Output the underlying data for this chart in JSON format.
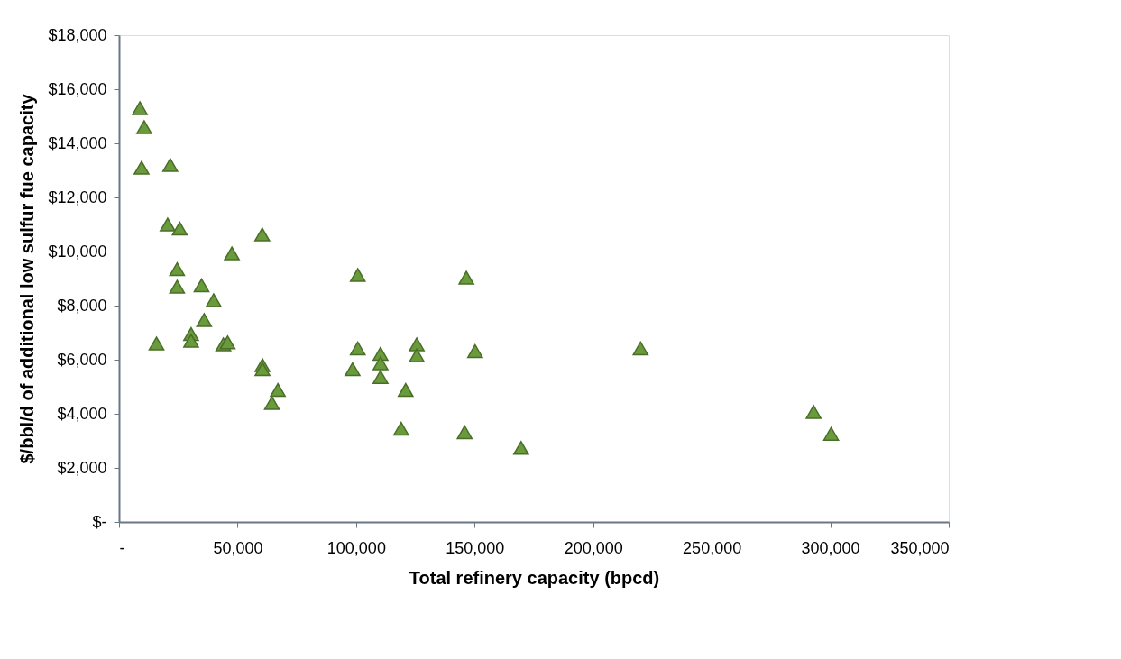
{
  "chart_data": {
    "type": "scatter",
    "xlabel": "Total refinery capacity (bpcd)",
    "ylabel": "$/bbl/d of additional low sulfur fue capacity",
    "marker": "triangle",
    "grid": false,
    "xlim": [
      0,
      350000
    ],
    "ylim": [
      0,
      18000
    ],
    "xticks": [
      {
        "value": 0,
        "label": "-"
      },
      {
        "value": 50000,
        "label": "50,000"
      },
      {
        "value": 100000,
        "label": "100,000"
      },
      {
        "value": 150000,
        "label": "150,000"
      },
      {
        "value": 200000,
        "label": "200,000"
      },
      {
        "value": 250000,
        "label": "250,000"
      },
      {
        "value": 300000,
        "label": "300,000"
      },
      {
        "value": 350000,
        "label": "350,000"
      }
    ],
    "yticks": [
      {
        "value": 0,
        "label": "$-"
      },
      {
        "value": 2000,
        "label": "$2,000"
      },
      {
        "value": 4000,
        "label": "$4,000"
      },
      {
        "value": 6000,
        "label": "$6,000"
      },
      {
        "value": 8000,
        "label": "$8,000"
      },
      {
        "value": 10000,
        "label": "$10,000"
      },
      {
        "value": 12000,
        "label": "$12,000"
      },
      {
        "value": 14000,
        "label": "$14,000"
      },
      {
        "value": 16000,
        "label": "$16,000"
      },
      {
        "value": 18000,
        "label": "$18,000"
      }
    ],
    "series": [
      {
        "color": "#699a3b",
        "x": [
          8800,
          10600,
          9500,
          21600,
          20500,
          25600,
          24500,
          24500,
          15800,
          30400,
          30400,
          34800,
          39900,
          35900,
          44000,
          45800,
          47600,
          60400,
          60500,
          60500,
          67000,
          64500,
          100700,
          146500,
          100700,
          110300,
          110300,
          110300,
          98500,
          125600,
          125600,
          150200,
          220000,
          120900,
          119000,
          145800,
          169600,
          293000,
          300400
        ],
        "values": [
          15300,
          14600,
          13100,
          13200,
          11000,
          10850,
          9350,
          8700,
          6600,
          6950,
          6700,
          8750,
          8200,
          7470,
          6570,
          6640,
          9930,
          10630,
          5800,
          5650,
          4880,
          4400,
          9130,
          9030,
          6420,
          6220,
          5870,
          5360,
          5650,
          6570,
          6160,
          6320,
          6420,
          4880,
          3450,
          3320,
          2740,
          4070,
          3260
        ]
      }
    ]
  }
}
